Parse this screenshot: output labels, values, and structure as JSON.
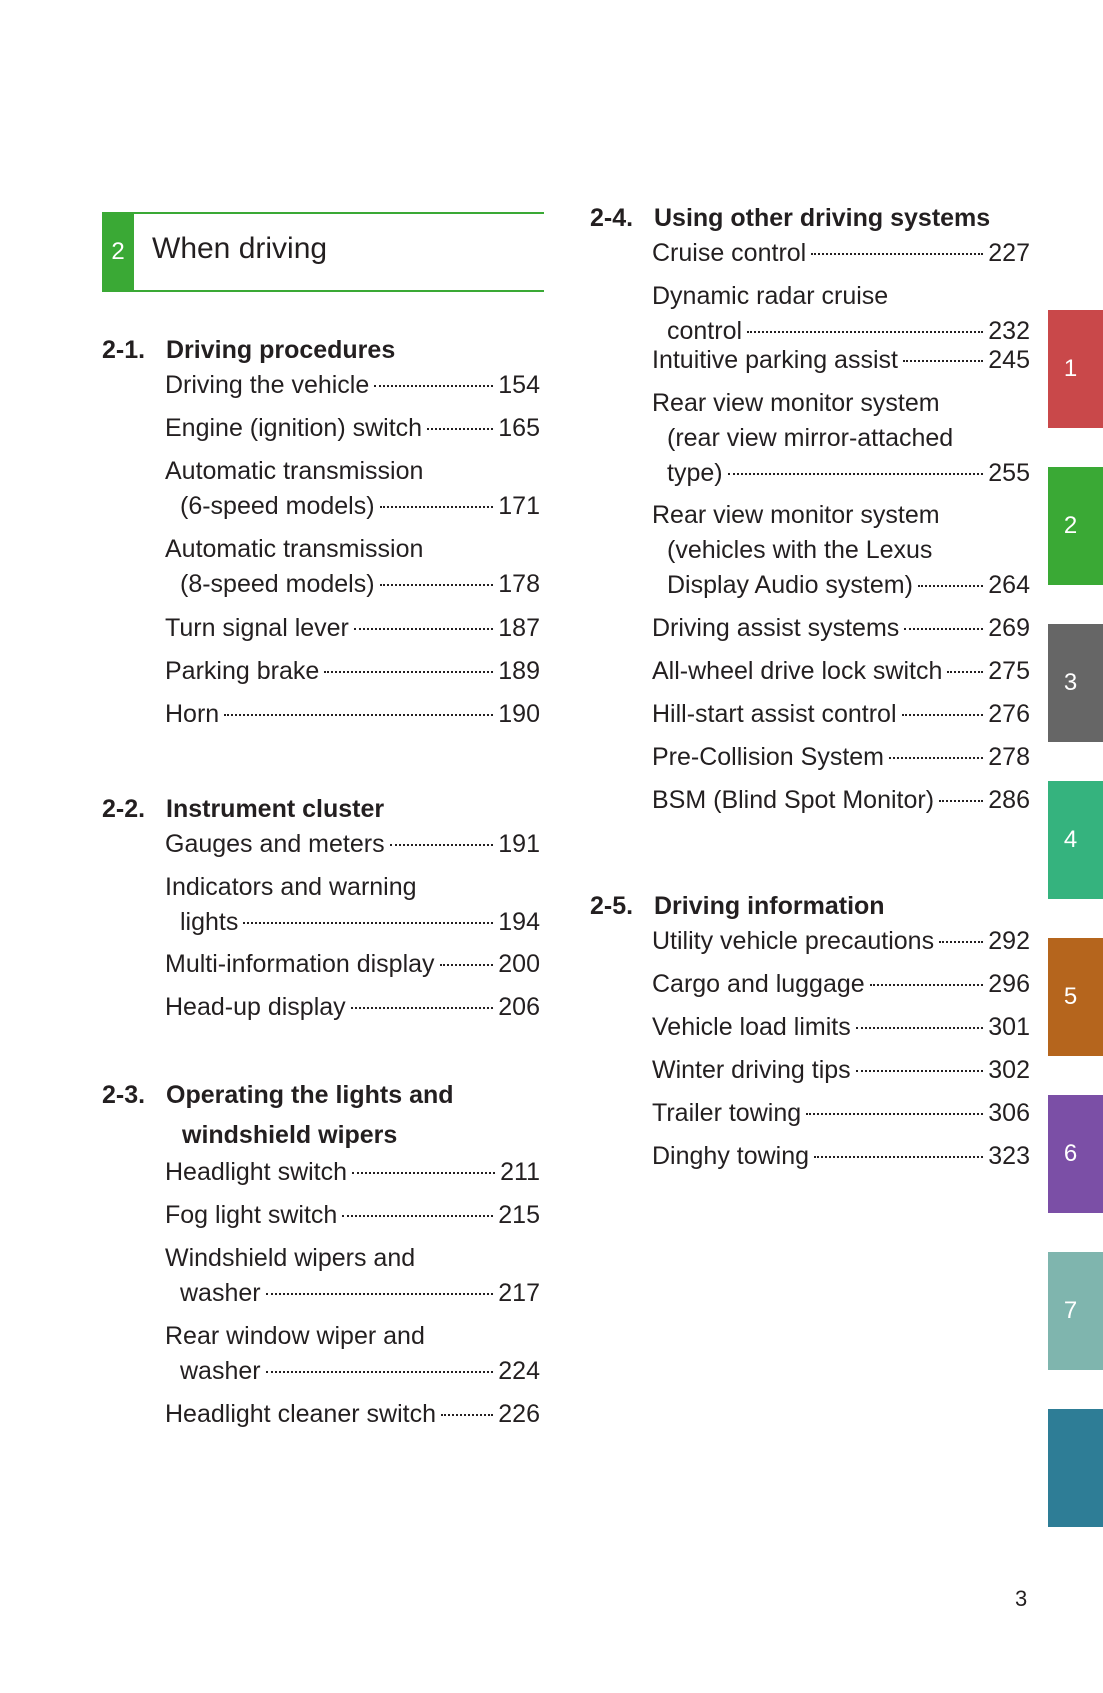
{
  "header": {
    "number": "2",
    "title": "When driving"
  },
  "left_sections": [
    {
      "num": "2-1.",
      "title": [
        "Driving procedures"
      ],
      "entries": [
        {
          "lines": [
            "Driving the vehicle"
          ],
          "page": "154"
        },
        {
          "lines": [
            "Engine (ignition) switch"
          ],
          "page": "165"
        },
        {
          "lines": [
            "Automatic transmission",
            "(6-speed models)"
          ],
          "page": "171"
        },
        {
          "lines": [
            "Automatic transmission",
            "(8-speed models)"
          ],
          "page": "178"
        },
        {
          "lines": [
            "Turn signal lever"
          ],
          "page": "187"
        },
        {
          "lines": [
            "Parking brake"
          ],
          "page": "189"
        },
        {
          "lines": [
            "Horn"
          ],
          "page": "190"
        }
      ]
    },
    {
      "num": "2-2.",
      "title": [
        "Instrument cluster"
      ],
      "entries": [
        {
          "lines": [
            "Gauges and meters"
          ],
          "page": "191"
        },
        {
          "lines": [
            "Indicators and warning",
            "lights"
          ],
          "page": "194"
        },
        {
          "lines": [
            "Multi-information display"
          ],
          "page": "200"
        },
        {
          "lines": [
            "Head-up display"
          ],
          "page": "206"
        }
      ]
    },
    {
      "num": "2-3.",
      "title": [
        "Operating the lights and",
        "windshield wipers"
      ],
      "entries": [
        {
          "lines": [
            "Headlight switch"
          ],
          "page": "211"
        },
        {
          "lines": [
            "Fog light switch"
          ],
          "page": "215"
        },
        {
          "lines": [
            "Windshield wipers and",
            "washer"
          ],
          "page": "217"
        },
        {
          "lines": [
            "Rear window wiper and",
            "washer"
          ],
          "page": "224"
        },
        {
          "lines": [
            "Headlight cleaner switch"
          ],
          "page": "226"
        }
      ]
    }
  ],
  "right_sections": [
    {
      "num": "2-4.",
      "title": [
        "Using other driving systems"
      ],
      "entries": [
        {
          "lines": [
            "Cruise control"
          ],
          "page": "227"
        },
        {
          "lines": [
            "Dynamic radar cruise",
            "control"
          ],
          "page": "232"
        },
        {
          "lines": [
            "Intuitive parking assist"
          ],
          "page": "245"
        },
        {
          "lines": [
            "Rear view monitor system",
            "(rear view mirror-attached",
            "type)"
          ],
          "page": "255"
        },
        {
          "lines": [
            "Rear view monitor system",
            "(vehicles with the Lexus",
            "Display Audio system)"
          ],
          "page": "264"
        },
        {
          "lines": [
            "Driving assist systems"
          ],
          "page": "269"
        },
        {
          "lines": [
            "All-wheel drive lock switch"
          ],
          "page": "275"
        },
        {
          "lines": [
            "Hill-start assist control"
          ],
          "page": "276"
        },
        {
          "lines": [
            "Pre-Collision System"
          ],
          "page": "278"
        },
        {
          "lines": [
            "BSM (Blind Spot Monitor)"
          ],
          "page": "286"
        }
      ]
    },
    {
      "num": "2-5.",
      "title": [
        "Driving information"
      ],
      "entries": [
        {
          "lines": [
            "Utility vehicle precautions"
          ],
          "page": "292"
        },
        {
          "lines": [
            "Cargo and luggage"
          ],
          "page": "296"
        },
        {
          "lines": [
            "Vehicle load limits"
          ],
          "page": "301"
        },
        {
          "lines": [
            "Winter driving tips"
          ],
          "page": "302"
        },
        {
          "lines": [
            "Trailer towing"
          ],
          "page": "306"
        },
        {
          "lines": [
            "Dinghy towing"
          ],
          "page": "323"
        }
      ]
    }
  ],
  "tabs": [
    {
      "label": "1",
      "color": "#c9484a"
    },
    {
      "label": "2",
      "color": "#3aa935"
    },
    {
      "label": "3",
      "color": "#666666"
    },
    {
      "label": "4",
      "color": "#35b37e"
    },
    {
      "label": "5",
      "color": "#b5651d"
    },
    {
      "label": "6",
      "color": "#7b4fa6"
    },
    {
      "label": "7",
      "color": "#7fb5ae"
    },
    {
      "label": "",
      "color": "#2e7d96"
    }
  ],
  "page_number": "3"
}
